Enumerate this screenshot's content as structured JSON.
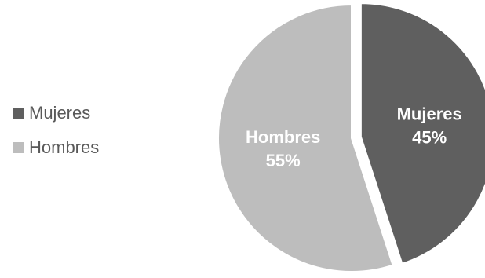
{
  "chart_data": {
    "type": "pie",
    "title": "",
    "categories": [
      "Mujeres",
      "Hombres"
    ],
    "values": [
      45,
      55
    ],
    "labels": [
      "Mujeres",
      "Hombres"
    ],
    "percent_labels": [
      "45%",
      "55%"
    ],
    "colors": [
      "#5f5f5f",
      "#bdbdbd"
    ],
    "legend_position": "left",
    "exploded_slice": "Mujeres"
  },
  "legend": {
    "items": [
      {
        "label": "Mujeres",
        "color": "#5f5f5f"
      },
      {
        "label": "Hombres",
        "color": "#bdbdbd"
      }
    ]
  }
}
